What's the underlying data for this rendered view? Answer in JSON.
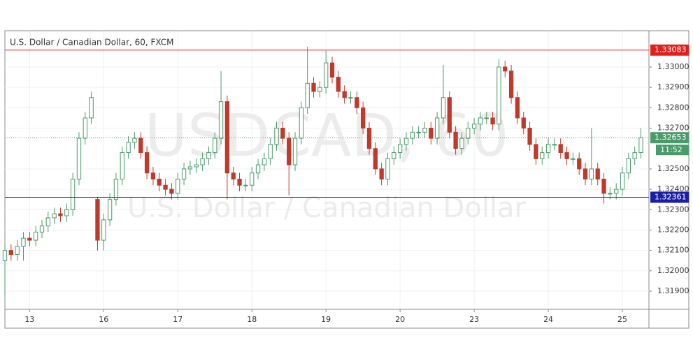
{
  "chart_data": {
    "type": "candlestick",
    "title": "U.S. Dollar / Canadian Dollar, 60, FXCM",
    "watermark": "USDCAD, 60",
    "watermark_subtitle": "U.S. Dollar / Canadian Dollar",
    "countdown": "11:52",
    "up_color": "#4a9a6a",
    "down_color": "#c0392b",
    "grid": true,
    "open": [
      1.3205,
      1.321,
      1.3208,
      1.3212,
      1.3216,
      1.3215,
      1.3219,
      1.3222,
      1.3226,
      1.3228,
      1.3227,
      1.323,
      1.3245,
      1.3265,
      1.3275,
      1.3235,
      1.3215,
      1.3225,
      1.3235,
      1.3245,
      1.3258,
      1.3263,
      1.3265,
      1.3258,
      1.3248,
      1.3245,
      1.3242,
      1.324,
      1.3238,
      1.3245,
      1.325,
      1.3251,
      1.3252,
      1.3255,
      1.3258,
      1.3265,
      1.3283,
      1.3248,
      1.3245,
      1.3242,
      1.3242,
      1.3248,
      1.3252,
      1.3255,
      1.3262,
      1.327,
      1.3265,
      1.3252,
      1.3265,
      1.328,
      1.3292,
      1.3288,
      1.329,
      1.3302,
      1.3295,
      1.3288,
      1.3285,
      1.3285,
      1.328,
      1.327,
      1.326,
      1.325,
      1.3245,
      1.3255,
      1.3258,
      1.3262,
      1.3265,
      1.3268,
      1.3268,
      1.327,
      1.3265,
      1.3275,
      1.3285,
      1.3268,
      1.326,
      1.3265,
      1.327,
      1.3272,
      1.3275,
      1.3275,
      1.3272,
      1.33,
      1.3298,
      1.3285,
      1.3275,
      1.327,
      1.3262,
      1.3255,
      1.3258,
      1.3262,
      1.3262,
      1.3258,
      1.3255,
      1.3255,
      1.325,
      1.3245,
      1.325,
      1.3245,
      1.3238,
      1.3238,
      1.324,
      1.3248,
      1.3255,
      1.3258
    ],
    "high": [
      1.3213,
      1.3213,
      1.3215,
      1.3219,
      1.3219,
      1.3222,
      1.3225,
      1.3229,
      1.3231,
      1.3231,
      1.3233,
      1.3248,
      1.3268,
      1.3278,
      1.3288,
      1.3236,
      1.3228,
      1.3238,
      1.3248,
      1.3261,
      1.3266,
      1.3268,
      1.3268,
      1.3261,
      1.3251,
      1.3248,
      1.3245,
      1.3243,
      1.3248,
      1.3253,
      1.3254,
      1.3255,
      1.3258,
      1.3261,
      1.3268,
      1.3298,
      1.3286,
      1.3251,
      1.3248,
      1.3245,
      1.3251,
      1.3255,
      1.3258,
      1.3265,
      1.3273,
      1.3273,
      1.3268,
      1.3268,
      1.3283,
      1.331,
      1.3295,
      1.3293,
      1.3308,
      1.3305,
      1.3298,
      1.3291,
      1.3288,
      1.3288,
      1.3283,
      1.3273,
      1.3263,
      1.3253,
      1.3258,
      1.3261,
      1.3265,
      1.3268,
      1.3271,
      1.3271,
      1.3273,
      1.3273,
      1.3278,
      1.3301,
      1.3288,
      1.3271,
      1.3268,
      1.3273,
      1.3275,
      1.3278,
      1.3278,
      1.3278,
      1.3304,
      1.3303,
      1.3301,
      1.3288,
      1.3278,
      1.3273,
      1.3265,
      1.3261,
      1.3265,
      1.3265,
      1.3265,
      1.3261,
      1.3258,
      1.3258,
      1.3253,
      1.327,
      1.3253,
      1.3248,
      1.3241,
      1.3243,
      1.3251,
      1.3258,
      1.3261,
      1.327
    ],
    "low": [
      1.3188,
      1.3205,
      1.3205,
      1.3205,
      1.3212,
      1.3212,
      1.3216,
      1.3219,
      1.3223,
      1.3224,
      1.3224,
      1.3227,
      1.3242,
      1.3262,
      1.3272,
      1.321,
      1.321,
      1.3222,
      1.3232,
      1.3242,
      1.3255,
      1.326,
      1.3255,
      1.3245,
      1.3242,
      1.3239,
      1.3237,
      1.3235,
      1.3235,
      1.3242,
      1.3247,
      1.3248,
      1.3249,
      1.3252,
      1.3255,
      1.3262,
      1.3235,
      1.3242,
      1.3239,
      1.3239,
      1.3239,
      1.3245,
      1.3249,
      1.3252,
      1.3259,
      1.3262,
      1.3237,
      1.3249,
      1.3262,
      1.3277,
      1.3285,
      1.3285,
      1.3287,
      1.3292,
      1.3285,
      1.3282,
      1.3282,
      1.3277,
      1.3267,
      1.3257,
      1.3247,
      1.3242,
      1.3242,
      1.3252,
      1.3255,
      1.3259,
      1.3262,
      1.3265,
      1.3265,
      1.3262,
      1.3262,
      1.3272,
      1.3265,
      1.3257,
      1.3257,
      1.3262,
      1.3267,
      1.3269,
      1.3272,
      1.3269,
      1.3269,
      1.3295,
      1.3282,
      1.3272,
      1.3267,
      1.3259,
      1.3252,
      1.3252,
      1.3255,
      1.3259,
      1.3255,
      1.3252,
      1.3252,
      1.3247,
      1.3242,
      1.3242,
      1.3242,
      1.3233,
      1.3235,
      1.3235,
      1.3237,
      1.3245,
      1.3252,
      1.3255
    ],
    "close": [
      1.321,
      1.3208,
      1.3212,
      1.3216,
      1.3215,
      1.3219,
      1.3222,
      1.3226,
      1.3228,
      1.3227,
      1.323,
      1.3245,
      1.3265,
      1.3275,
      1.3285,
      1.3215,
      1.3225,
      1.3235,
      1.3245,
      1.3258,
      1.3263,
      1.3265,
      1.3258,
      1.3248,
      1.3245,
      1.3242,
      1.324,
      1.3238,
      1.3245,
      1.325,
      1.3251,
      1.3252,
      1.3255,
      1.3258,
      1.3265,
      1.3283,
      1.3248,
      1.3245,
      1.3242,
      1.3242,
      1.3248,
      1.3252,
      1.3255,
      1.3262,
      1.327,
      1.3265,
      1.3252,
      1.3265,
      1.328,
      1.3292,
      1.3288,
      1.329,
      1.3302,
      1.3295,
      1.3288,
      1.3285,
      1.3285,
      1.328,
      1.327,
      1.326,
      1.325,
      1.3245,
      1.3255,
      1.3258,
      1.3262,
      1.3265,
      1.3268,
      1.3268,
      1.327,
      1.3265,
      1.3275,
      1.3285,
      1.3268,
      1.326,
      1.3265,
      1.327,
      1.3272,
      1.3275,
      1.3275,
      1.3272,
      1.33,
      1.3298,
      1.3285,
      1.3275,
      1.327,
      1.3262,
      1.3255,
      1.3258,
      1.3262,
      1.3262,
      1.3258,
      1.3255,
      1.3255,
      1.325,
      1.3245,
      1.325,
      1.3245,
      1.3238,
      1.3238,
      1.324,
      1.3248,
      1.3255,
      1.3258,
      1.32653
    ],
    "xlim": [
      0,
      104.3
    ],
    "xticks": [
      {
        "value": 4,
        "label": "13"
      },
      {
        "value": 16,
        "label": "16"
      },
      {
        "value": 28,
        "label": "17"
      },
      {
        "value": 40,
        "label": "18"
      },
      {
        "value": 52,
        "label": "19"
      },
      {
        "value": 64,
        "label": "20"
      },
      {
        "value": 76,
        "label": "23"
      },
      {
        "value": 88,
        "label": "24"
      },
      {
        "value": 100,
        "label": "25"
      }
    ],
    "ylim": [
      1.31811,
      1.33178
    ],
    "yticks": [
      {
        "value": 1.319,
        "label": "1.31900"
      },
      {
        "value": 1.32,
        "label": "1.32000"
      },
      {
        "value": 1.321,
        "label": "1.32100"
      },
      {
        "value": 1.322,
        "label": "1.32200"
      },
      {
        "value": 1.323,
        "label": "1.32300"
      },
      {
        "value": 1.324,
        "label": "1.32400"
      },
      {
        "value": 1.325,
        "label": "1.32500"
      },
      {
        "value": 1.327,
        "label": "1.32700"
      },
      {
        "value": 1.328,
        "label": "1.32800"
      },
      {
        "value": 1.329,
        "label": "1.32900"
      },
      {
        "value": 1.33,
        "label": "1.33000"
      }
    ],
    "levels": [
      {
        "value": 1.33083,
        "color": "#e0201c"
      },
      {
        "value": 1.32361,
        "color": "#1b1fa8"
      }
    ],
    "current_price": {
      "value": 1.32653,
      "color": "#4a9a6a"
    }
  }
}
